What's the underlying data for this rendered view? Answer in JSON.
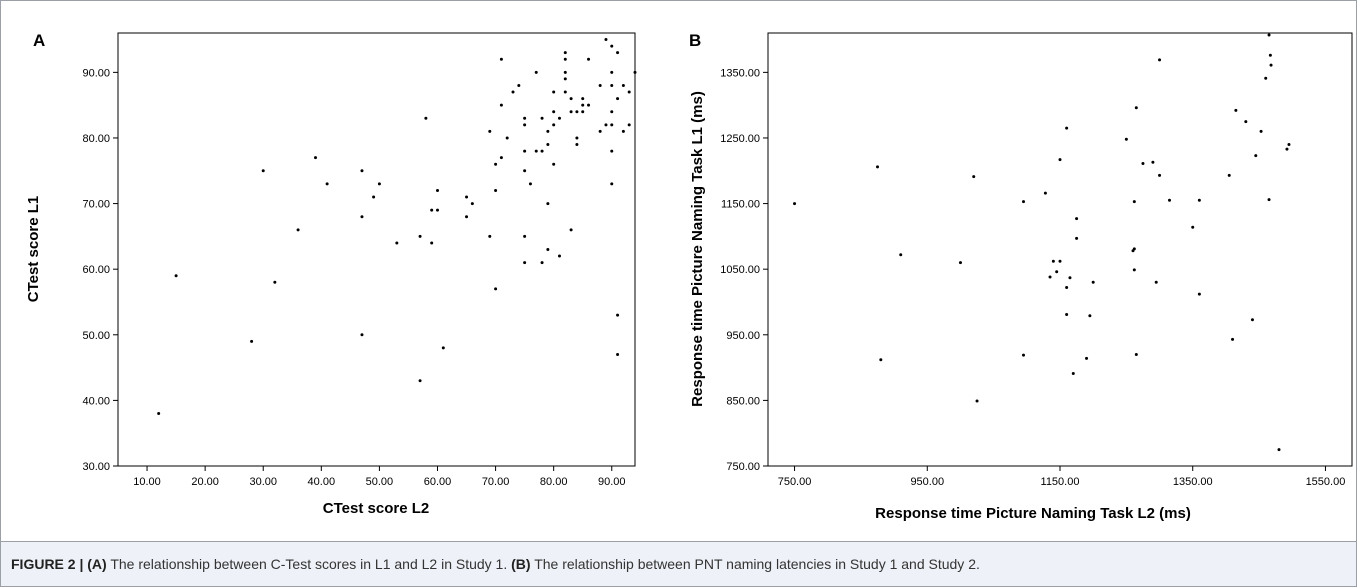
{
  "caption": {
    "label": "FIGURE 2 | ",
    "part_a": "(A)",
    "text_a": " The relationship between C-Test scores in L1 and L2 in Study 1. ",
    "part_b": "(B)",
    "text_b": " The relationship between PNT naming latencies in Study 1 and Study 2."
  },
  "chart_data": [
    {
      "type": "scatter",
      "panel": "A",
      "xlabel": "CTest score L2",
      "ylabel": "CTest score L1",
      "xlim": [
        5,
        94
      ],
      "ylim": [
        30,
        96
      ],
      "xticks": [
        "10.00",
        "20.00",
        "30.00",
        "40.00",
        "50.00",
        "60.00",
        "70.00",
        "80.00",
        "90.00"
      ],
      "yticks": [
        "30.00",
        "40.00",
        "50.00",
        "60.00",
        "70.00",
        "80.00",
        "90.00"
      ],
      "grid": false,
      "points": [
        [
          12,
          38
        ],
        [
          15,
          59
        ],
        [
          28,
          49
        ],
        [
          30,
          75
        ],
        [
          32,
          58
        ],
        [
          36,
          66
        ],
        [
          39,
          77
        ],
        [
          41,
          73
        ],
        [
          47,
          75
        ],
        [
          47,
          68
        ],
        [
          47,
          50
        ],
        [
          49,
          71
        ],
        [
          50,
          73
        ],
        [
          53,
          64
        ],
        [
          57,
          65
        ],
        [
          57,
          43
        ],
        [
          58,
          83
        ],
        [
          59,
          64
        ],
        [
          59,
          69
        ],
        [
          60,
          69
        ],
        [
          60,
          72
        ],
        [
          61,
          48
        ],
        [
          65,
          71
        ],
        [
          65,
          68
        ],
        [
          66,
          70
        ],
        [
          69,
          81
        ],
        [
          69,
          65
        ],
        [
          70,
          72
        ],
        [
          70,
          76
        ],
        [
          70,
          57
        ],
        [
          71,
          92
        ],
        [
          71,
          85
        ],
        [
          71,
          77
        ],
        [
          72,
          80
        ],
        [
          73,
          87
        ],
        [
          74,
          88
        ],
        [
          75,
          83
        ],
        [
          75,
          82
        ],
        [
          75,
          78
        ],
        [
          75,
          75
        ],
        [
          75,
          65
        ],
        [
          75,
          61
        ],
        [
          76,
          73
        ],
        [
          77,
          90
        ],
        [
          77,
          78
        ],
        [
          78,
          78
        ],
        [
          78,
          61
        ],
        [
          78,
          83
        ],
        [
          79,
          81
        ],
        [
          79,
          79
        ],
        [
          79,
          70
        ],
        [
          79,
          63
        ],
        [
          80,
          87
        ],
        [
          80,
          84
        ],
        [
          80,
          76
        ],
        [
          80,
          82
        ],
        [
          81,
          62
        ],
        [
          81,
          83
        ],
        [
          82,
          93
        ],
        [
          82,
          92
        ],
        [
          82,
          90
        ],
        [
          82,
          89
        ],
        [
          82,
          87
        ],
        [
          83,
          86
        ],
        [
          83,
          84
        ],
        [
          83,
          66
        ],
        [
          84,
          80
        ],
        [
          84,
          79
        ],
        [
          84,
          84
        ],
        [
          85,
          86
        ],
        [
          85,
          85
        ],
        [
          85,
          84
        ],
        [
          86,
          92
        ],
        [
          86,
          85
        ],
        [
          88,
          88
        ],
        [
          88,
          81
        ],
        [
          89,
          95
        ],
        [
          89,
          82
        ],
        [
          90,
          94
        ],
        [
          90,
          90
        ],
        [
          90,
          88
        ],
        [
          90,
          84
        ],
        [
          90,
          82
        ],
        [
          90,
          78
        ],
        [
          90,
          73
        ],
        [
          91,
          93
        ],
        [
          91,
          86
        ],
        [
          91,
          53
        ],
        [
          91,
          47
        ],
        [
          92,
          88
        ],
        [
          92,
          81
        ],
        [
          93,
          87
        ],
        [
          93,
          82
        ],
        [
          94,
          90
        ]
      ]
    },
    {
      "type": "scatter",
      "panel": "B",
      "xlabel": "Response time Picture Naming Task L2 (ms)",
      "ylabel": "Response time Picture Naming Task L1 (ms)",
      "xlim": [
        710,
        1590
      ],
      "ylim": [
        750,
        1410
      ],
      "xticks": [
        "750.00",
        "950.00",
        "1150.00",
        "1350.00",
        "1550.00"
      ],
      "yticks": [
        "750.00",
        "850.00",
        "950.00",
        "1050.00",
        "1150.00",
        "1250.00",
        "1350.00"
      ],
      "grid": false,
      "points": [
        [
          750,
          1150
        ],
        [
          875,
          1206
        ],
        [
          880,
          912
        ],
        [
          910,
          1072
        ],
        [
          1000,
          1060
        ],
        [
          1020,
          1191
        ],
        [
          1025,
          849
        ],
        [
          1095,
          919
        ],
        [
          1095,
          1153
        ],
        [
          1128,
          1166
        ],
        [
          1135,
          1038
        ],
        [
          1140,
          1062
        ],
        [
          1145,
          1046
        ],
        [
          1150,
          1217
        ],
        [
          1150,
          1062
        ],
        [
          1160,
          981
        ],
        [
          1160,
          1265
        ],
        [
          1160,
          1022
        ],
        [
          1165,
          1037
        ],
        [
          1170,
          891
        ],
        [
          1175,
          1097
        ],
        [
          1175,
          1127
        ],
        [
          1190,
          914
        ],
        [
          1195,
          979
        ],
        [
          1200,
          1030
        ],
        [
          1250,
          1248
        ],
        [
          1260,
          1078
        ],
        [
          1262,
          1081
        ],
        [
          1262,
          1049
        ],
        [
          1262,
          1153
        ],
        [
          1265,
          1296
        ],
        [
          1265,
          920
        ],
        [
          1275,
          1211
        ],
        [
          1290,
          1213
        ],
        [
          1295,
          1030
        ],
        [
          1300,
          1193
        ],
        [
          1300,
          1369
        ],
        [
          1315,
          1155
        ],
        [
          1350,
          1114
        ],
        [
          1360,
          1155
        ],
        [
          1360,
          1012
        ],
        [
          1405,
          1193
        ],
        [
          1410,
          943
        ],
        [
          1415,
          1292
        ],
        [
          1430,
          1275
        ],
        [
          1440,
          973
        ],
        [
          1445,
          1223
        ],
        [
          1453,
          1260
        ],
        [
          1460,
          1341
        ],
        [
          1465,
          1156
        ],
        [
          1465,
          1407
        ],
        [
          1467,
          1376
        ],
        [
          1468,
          1361
        ],
        [
          1480,
          775
        ],
        [
          1492,
          1233
        ],
        [
          1495,
          1240
        ]
      ]
    }
  ]
}
